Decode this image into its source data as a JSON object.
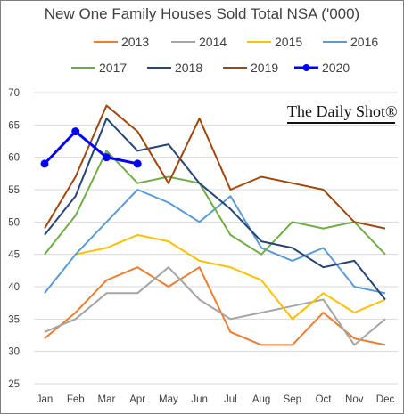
{
  "chart_data": {
    "type": "line",
    "title": "New One Family Houses Sold Total NSA ('000)",
    "watermark": "The Daily Shot®",
    "categories": [
      "Jan",
      "Feb",
      "Mar",
      "Apr",
      "May",
      "Jun",
      "Jul",
      "Aug",
      "Sep",
      "Oct",
      "Nov",
      "Dec"
    ],
    "ylim": [
      25,
      70
    ],
    "yticks": [
      25,
      30,
      35,
      40,
      45,
      50,
      55,
      60,
      65,
      70
    ],
    "grid": true,
    "legend_position": "top",
    "series": [
      {
        "name": "2013",
        "color": "#ed7d31",
        "values": [
          32,
          36,
          41,
          43,
          40,
          43,
          33,
          31,
          31,
          36,
          32,
          31
        ]
      },
      {
        "name": "2014",
        "color": "#a5a5a5",
        "values": [
          33,
          35,
          39,
          39,
          43,
          38,
          35,
          36,
          37,
          38,
          31,
          35
        ]
      },
      {
        "name": "2015",
        "color": "#ffc000",
        "values": [
          null,
          45,
          46,
          48,
          47,
          44,
          43,
          41,
          35,
          39,
          36,
          38
        ]
      },
      {
        "name": "2016",
        "color": "#5b9bd5",
        "values": [
          39,
          45,
          50,
          55,
          53,
          50,
          54,
          46,
          44,
          46,
          40,
          39
        ]
      },
      {
        "name": "2017",
        "color": "#70ad47",
        "values": [
          45,
          51,
          61,
          56,
          57,
          56,
          48,
          45,
          50,
          49,
          50,
          45
        ]
      },
      {
        "name": "2018",
        "color": "#264478",
        "values": [
          48,
          54,
          66,
          61,
          62,
          56,
          52,
          47,
          46,
          43,
          44,
          38
        ]
      },
      {
        "name": "2019",
        "color": "#9e480e",
        "values": [
          49,
          57,
          68,
          64,
          56,
          66,
          55,
          57,
          56,
          55,
          50,
          49
        ]
      },
      {
        "name": "2020",
        "color": "#0000ff",
        "values": [
          59,
          64,
          60,
          59,
          null,
          null,
          null,
          null,
          null,
          null,
          null,
          null
        ]
      }
    ]
  }
}
